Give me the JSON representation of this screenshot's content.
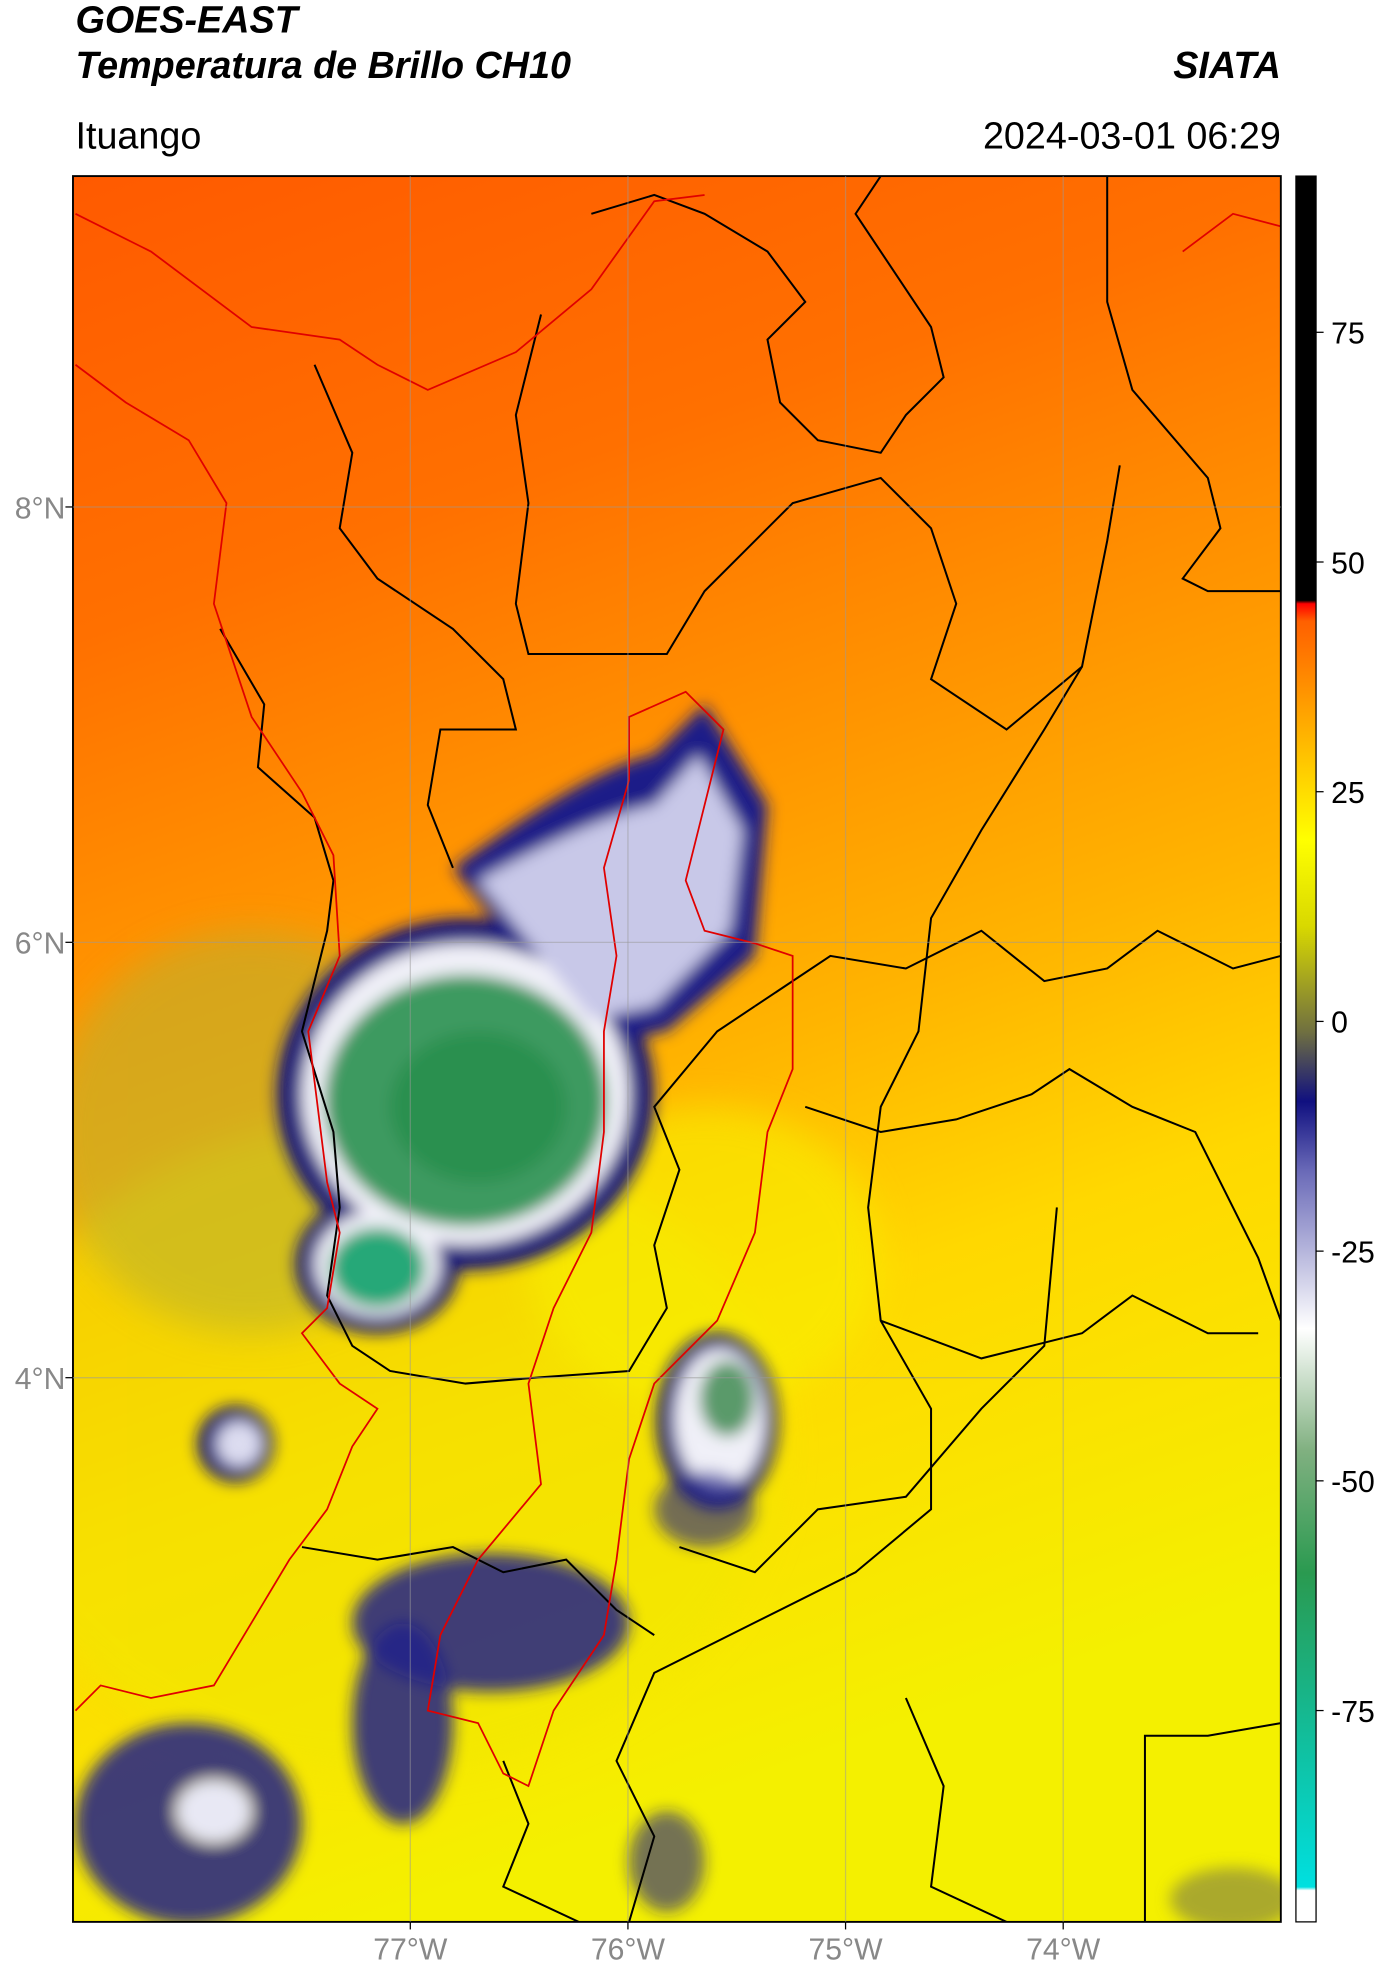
{
  "header": {
    "title": "GOES-EAST",
    "subtitle": "Temperatura de Brillo CH10",
    "source": "SIATA",
    "location": "Ituango",
    "datetime": "2024-03-01 06:29"
  },
  "map": {
    "xlim": [
      -78.55,
      -73.0
    ],
    "ylim": [
      1.5,
      9.52
    ],
    "xticks": [
      {
        "value": -77,
        "label": "77°W"
      },
      {
        "value": -76,
        "label": "76°W"
      },
      {
        "value": -75,
        "label": "75°W"
      },
      {
        "value": -74,
        "label": "74°W"
      }
    ],
    "yticks": [
      {
        "value": 8,
        "label": "8°N"
      },
      {
        "value": 6,
        "label": "6°N"
      },
      {
        "value": 4,
        "label": "4°N"
      }
    ],
    "grid": true
  },
  "colorbar": {
    "lim": [
      -98,
      92
    ],
    "ticks": [
      75,
      50,
      25,
      0,
      -25,
      -50,
      -75
    ]
  }
}
